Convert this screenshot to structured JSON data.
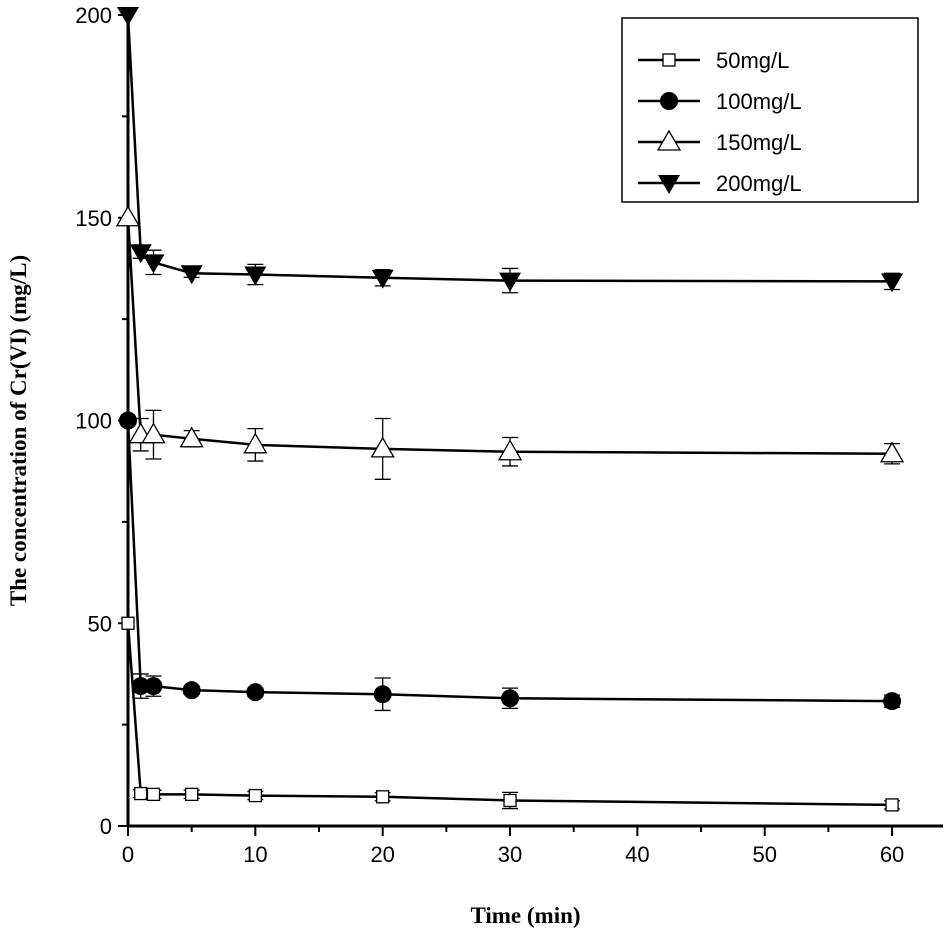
{
  "chart_data": {
    "type": "line",
    "title": "",
    "xlabel": "Time (min)",
    "ylabel": "The concentration of Cr(VI) (mg/L)",
    "xlim": [
      0,
      64
    ],
    "ylim": [
      0,
      200
    ],
    "xticks": [
      0,
      10,
      20,
      30,
      40,
      50,
      60
    ],
    "yticks": [
      0,
      50,
      100,
      150,
      200
    ],
    "grid": false,
    "legend_position": "top-right",
    "x": [
      0,
      1,
      2,
      5,
      10,
      20,
      30,
      60
    ],
    "series": [
      {
        "name": "50mg/L",
        "marker": "open-square",
        "values": [
          50,
          8,
          7.8,
          7.8,
          7.5,
          7.2,
          6.3,
          5.2
        ],
        "errors": [
          0,
          1,
          1,
          1,
          1,
          1,
          2,
          1
        ]
      },
      {
        "name": "100mg/L",
        "marker": "filled-circle",
        "values": [
          100,
          34.5,
          34.5,
          33.5,
          33,
          32.5,
          31.5,
          30.8
        ],
        "errors": [
          0,
          3,
          2.5,
          1,
          1,
          4,
          2.5,
          1.5
        ]
      },
      {
        "name": "150mg/L",
        "marker": "open-triangle-up",
        "values": [
          150,
          96.5,
          96.5,
          95.5,
          94,
          93,
          92.3,
          91.8
        ],
        "errors": [
          0,
          4,
          6,
          2,
          4,
          7.5,
          3.5,
          2.5
        ]
      },
      {
        "name": "200mg/L",
        "marker": "filled-triangle-down",
        "values": [
          200,
          141.5,
          139,
          136.3,
          136,
          135.2,
          134.5,
          134.3
        ],
        "errors": [
          0,
          1.5,
          3,
          1,
          2.5,
          2,
          3,
          2
        ]
      }
    ]
  }
}
